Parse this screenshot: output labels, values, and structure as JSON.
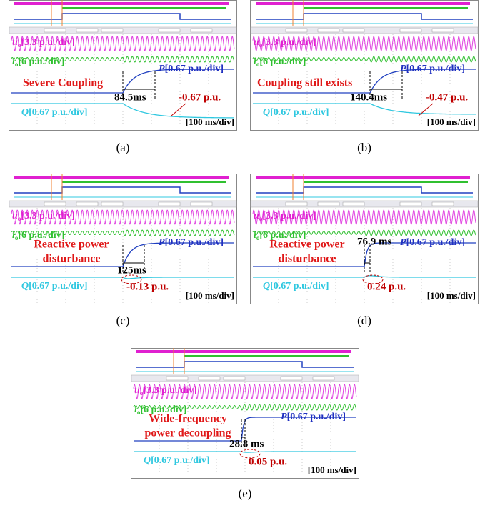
{
  "panels": [
    {
      "caption": "(a)",
      "u_label": {
        "var": "u",
        "sub": "o",
        "scale": "[3.3 p.u./div]"
      },
      "i_label": {
        "var": "i",
        "sub": "o",
        "scale": "[6 p.u./div]"
      },
      "p_label": {
        "var": "P",
        "scale": "[0.67 p.u./div]"
      },
      "q_label": {
        "var": "Q",
        "scale": "[0.67 p.u./div]"
      },
      "note": [
        "Severe Coupling"
      ],
      "time": "84.5ms",
      "q_change": "-0.67 p.u.",
      "timebase": "[100 ms/div]"
    },
    {
      "caption": "(b)",
      "u_label": {
        "var": "u",
        "sub": "o",
        "scale": "[3.3 p.u./div]"
      },
      "i_label": {
        "var": "i",
        "sub": "o",
        "scale": "[6 p.u./div]"
      },
      "p_label": {
        "var": "P",
        "scale": "[0.67 p.u./div]"
      },
      "q_label": {
        "var": "Q",
        "scale": "[0.67 p.u./div]"
      },
      "note": [
        "Coupling still exists"
      ],
      "time": "140.4ms",
      "q_change": "-0.47 p.u.",
      "timebase": "[100 ms/div]"
    },
    {
      "caption": "(c)",
      "u_label": {
        "var": "u",
        "sub": "o",
        "scale": "[3.3 p.u./div]"
      },
      "i_label": {
        "var": "i",
        "sub": "o",
        "scale": "[6 p.u./div]"
      },
      "p_label": {
        "var": "P",
        "scale": "[0.67 p.u./div]"
      },
      "q_label": {
        "var": "Q",
        "scale": "[0.67 p.u./div]"
      },
      "note": [
        "Reactive power",
        "disturbance"
      ],
      "time": "125ms",
      "q_change": "-0.13 p.u.",
      "timebase": "[100 ms/div]"
    },
    {
      "caption": "(d)",
      "u_label": {
        "var": "u",
        "sub": "o",
        "scale": "[3.3 p.u./div]"
      },
      "i_label": {
        "var": "i",
        "sub": "o",
        "scale": "[6 p.u./div]"
      },
      "p_label": {
        "var": "P",
        "scale": "[0.67 p.u./div]"
      },
      "q_label": {
        "var": "Q",
        "scale": "[0.67 p.u./div]"
      },
      "note": [
        "Reactive power",
        "disturbance"
      ],
      "time": "76.9 ms",
      "q_change": "0.24 p.u.",
      "timebase": "[100 ms/div]"
    },
    {
      "caption": "(e)",
      "u_label": {
        "var": "u",
        "sub": "o",
        "scale": "[3.3 p.u./div]"
      },
      "i_label": {
        "var": "i",
        "sub": "o",
        "scale": "[6 p.u./div]"
      },
      "p_label": {
        "var": "P",
        "scale": "[0.67 p.u./div]"
      },
      "q_label": {
        "var": "Q",
        "scale": "[0.67 p.u./div]"
      },
      "note": [
        "Wide-frequency",
        "power decoupling"
      ],
      "time": "28.8 ms",
      "q_change": "0.05 p.u.",
      "timebase": "[100 ms/div]"
    }
  ]
}
